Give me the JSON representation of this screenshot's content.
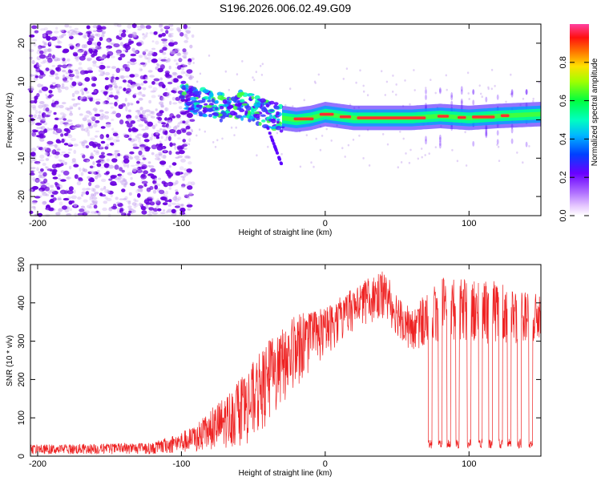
{
  "title": "S196.2026.006.02.49.G09",
  "colors": {
    "snr_line": "#ee2222",
    "scatter_base": "#6a00e0",
    "scatter_light": "#c8a8f0"
  },
  "chart_data": [
    {
      "type": "heatmap",
      "name": "spectrogram",
      "xlabel": "Height of straight line (km)",
      "ylabel": "Frequency (Hz)",
      "xlim": [
        -205,
        150
      ],
      "ylim": [
        -25,
        25
      ],
      "xticks": [
        -200,
        -100,
        0,
        100
      ],
      "xtick_labels": [
        "-200",
        "-100",
        "0",
        "100"
      ],
      "yticks": [
        -20,
        -10,
        0,
        10,
        20
      ],
      "ytick_labels": [
        "-20",
        "-10",
        "0",
        "10",
        "20"
      ],
      "colorbar": {
        "label": "Normalized spectral amplitude",
        "range": [
          0,
          1
        ],
        "ticks": [
          0.0,
          0.2,
          0.4,
          0.6,
          0.8
        ],
        "tick_labels": [
          "0.0",
          "0.2",
          "0.4",
          "0.6",
          "0.8"
        ],
        "colormap": "rainbow"
      },
      "ridge": [
        {
          "x": -100,
          "f": 7.0
        },
        {
          "x": -90,
          "f": 5.0
        },
        {
          "x": -80,
          "f": 4.0
        },
        {
          "x": -70,
          "f": 3.0
        },
        {
          "x": -60,
          "f": 4.0
        },
        {
          "x": -50,
          "f": 3.0
        },
        {
          "x": -40,
          "f": 1.5
        },
        {
          "x": -30,
          "f": 0.5
        },
        {
          "x": -20,
          "f": 0.0
        },
        {
          "x": -10,
          "f": 0.5
        },
        {
          "x": 0,
          "f": 1.5
        },
        {
          "x": 10,
          "f": 1.0
        },
        {
          "x": 20,
          "f": 0.5
        },
        {
          "x": 40,
          "f": 0.5
        },
        {
          "x": 60,
          "f": 0.5
        },
        {
          "x": 80,
          "f": 1.0
        },
        {
          "x": 100,
          "f": 0.5
        },
        {
          "x": 120,
          "f": 1.0
        },
        {
          "x": 150,
          "f": 1.5
        }
      ]
    },
    {
      "type": "line",
      "name": "snr",
      "xlabel": "Height of straight line (km)",
      "ylabel": "SNR (10 * v/v)",
      "xlim": [
        -205,
        150
      ],
      "ylim": [
        0,
        500
      ],
      "xticks": [
        -200,
        -100,
        0,
        100
      ],
      "xtick_labels": [
        "-200",
        "-100",
        "0",
        "100"
      ],
      "yticks": [
        0,
        100,
        200,
        300,
        400,
        500
      ],
      "ytick_labels": [
        "0",
        "100",
        "200",
        "300",
        "400",
        "500"
      ],
      "series": [
        {
          "name": "SNR",
          "envelope": [
            {
              "x": -205,
              "low": 5,
              "high": 30
            },
            {
              "x": -120,
              "low": 5,
              "high": 35
            },
            {
              "x": -90,
              "low": 10,
              "high": 80
            },
            {
              "x": -70,
              "low": 20,
              "high": 160
            },
            {
              "x": -55,
              "low": 30,
              "high": 220
            },
            {
              "x": -40,
              "low": 80,
              "high": 300
            },
            {
              "x": -20,
              "low": 180,
              "high": 370
            },
            {
              "x": 0,
              "low": 260,
              "high": 390
            },
            {
              "x": 20,
              "low": 330,
              "high": 440
            },
            {
              "x": 40,
              "low": 360,
              "high": 490
            },
            {
              "x": 60,
              "low": 270,
              "high": 380
            },
            {
              "x": 80,
              "low": 300,
              "high": 470
            },
            {
              "x": 100,
              "low": 300,
              "high": 460
            },
            {
              "x": 120,
              "low": 290,
              "high": 460
            },
            {
              "x": 150,
              "low": 300,
              "high": 420
            }
          ],
          "dropouts_x": [
            73,
            80,
            86,
            92,
            100,
            108,
            115,
            122,
            128,
            135,
            143
          ]
        }
      ]
    }
  ]
}
